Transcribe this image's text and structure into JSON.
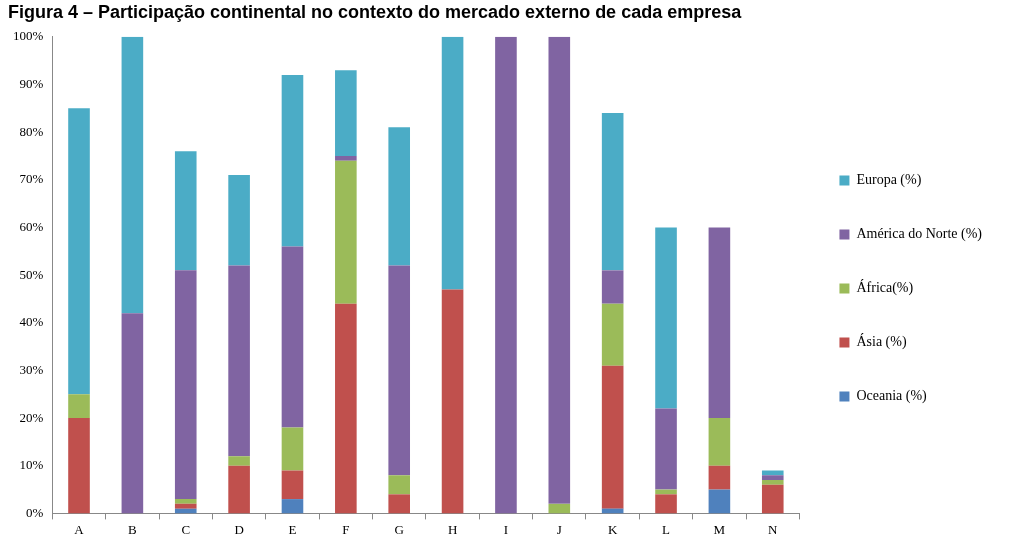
{
  "chart_data": {
    "type": "bar",
    "stacked": true,
    "title": "Figura 4 – Participação continental no contexto do mercado externo de cada empresa",
    "categories": [
      "A",
      "B",
      "C",
      "D",
      "E",
      "F",
      "G",
      "H",
      "I",
      "J",
      "K",
      "L",
      "M",
      "N"
    ],
    "series": [
      {
        "name": "Oceania (%)",
        "color": "#4f81bd",
        "values": [
          0,
          0,
          1,
          0,
          3,
          0,
          0,
          0,
          0,
          0,
          1,
          0,
          5,
          0
        ]
      },
      {
        "name": "Ásia (%)",
        "color": "#c0504d",
        "values": [
          20,
          0,
          1,
          10,
          6,
          44,
          4,
          47,
          0,
          0,
          30,
          4,
          5,
          6
        ]
      },
      {
        "name": "África(%)",
        "color": "#9bbb59",
        "values": [
          5,
          0,
          1,
          2,
          9,
          30,
          4,
          0,
          0,
          2,
          13,
          1,
          10,
          1
        ]
      },
      {
        "name": "América do Norte (%)",
        "color": "#8064a2",
        "values": [
          0,
          42,
          48,
          40,
          38,
          1,
          44,
          0,
          100,
          98,
          7,
          17,
          40,
          1
        ]
      },
      {
        "name": "Europa (%)",
        "color": "#4bacc6",
        "values": [
          60,
          58,
          25,
          19,
          36,
          18,
          29,
          53,
          0,
          0,
          33,
          38,
          0,
          1
        ]
      }
    ],
    "ylim": [
      0,
      100
    ],
    "yticks": [
      {
        "value": 0,
        "label": "0%"
      },
      {
        "value": 10,
        "label": "10%"
      },
      {
        "value": 20,
        "label": "20%"
      },
      {
        "value": 30,
        "label": "30%"
      },
      {
        "value": 40,
        "label": "40%"
      },
      {
        "value": 50,
        "label": "50%"
      },
      {
        "value": 60,
        "label": "60%"
      },
      {
        "value": 70,
        "label": "70%"
      },
      {
        "value": 80,
        "label": "80%"
      },
      {
        "value": 90,
        "label": "90%"
      },
      {
        "value": 100,
        "label": "100%"
      }
    ],
    "grid": false,
    "legend": "right"
  }
}
